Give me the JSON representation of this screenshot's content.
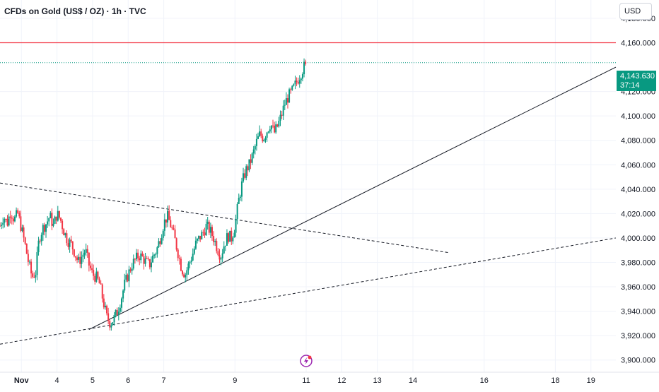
{
  "symbol_title": "CFDs on Gold (US$ / OZ) · 1h · TVC",
  "currency": "USD",
  "last_price": {
    "label": "4,143.630",
    "countdown": "37:14",
    "value": 4143.63,
    "color": "#089981"
  },
  "colors": {
    "up": "#089981",
    "down": "#f23645",
    "resistance": "#f23645",
    "trendline": "#131722",
    "grid": "#f0f3fa",
    "event_icon": "#9c27b0"
  },
  "event_icon": "lightning-icon",
  "chart_data": {
    "type": "candlestick",
    "ylim": [
      3890,
      4195
    ],
    "y_ticks": [
      {
        "value": 4180,
        "label": "4,180.000"
      },
      {
        "value": 4160,
        "label": "4,160.000"
      },
      {
        "value": 4120,
        "label": "4,120.000"
      },
      {
        "value": 4100,
        "label": "4,100.000"
      },
      {
        "value": 4080,
        "label": "4,080.000"
      },
      {
        "value": 4060,
        "label": "4,060.000"
      },
      {
        "value": 4040,
        "label": "4,040.000"
      },
      {
        "value": 4020,
        "label": "4,020.000"
      },
      {
        "value": 4000,
        "label": "4,000.000"
      },
      {
        "value": 3980,
        "label": "3,980.000"
      },
      {
        "value": 3960,
        "label": "3,960.000"
      },
      {
        "value": 3940,
        "label": "3,940.000"
      },
      {
        "value": 3920,
        "label": "3,920.000"
      },
      {
        "value": 3900,
        "label": "3,900.000"
      }
    ],
    "x_ticks": [
      {
        "day": 3,
        "label": "Nov"
      },
      {
        "day": 4,
        "label": "4"
      },
      {
        "day": 5,
        "label": "5"
      },
      {
        "day": 6,
        "label": "6"
      },
      {
        "day": 7,
        "label": "7"
      },
      {
        "day": 9,
        "label": "9"
      },
      {
        "day": 11,
        "label": "11"
      },
      {
        "day": 12,
        "label": "12"
      },
      {
        "day": 13,
        "label": "13"
      },
      {
        "day": 14,
        "label": "14"
      },
      {
        "day": 16,
        "label": "16"
      },
      {
        "day": 18,
        "label": "18"
      },
      {
        "day": 19,
        "label": "19"
      }
    ],
    "x_range": [
      2.4,
      19.7
    ],
    "series_points": [
      [
        2.4,
        4010
      ],
      [
        2.5,
        4018
      ],
      [
        2.6,
        4012
      ],
      [
        2.7,
        4022
      ],
      [
        2.8,
        4015
      ],
      [
        2.9,
        4020
      ],
      [
        3.0,
        4008
      ],
      [
        3.1,
        3995
      ],
      [
        3.2,
        3980
      ],
      [
        3.3,
        3968
      ],
      [
        3.4,
        3972
      ],
      [
        3.5,
        4000
      ],
      [
        3.6,
        4008
      ],
      [
        3.7,
        4012
      ],
      [
        3.8,
        4018
      ],
      [
        3.9,
        4010
      ],
      [
        4.0,
        4020
      ],
      [
        4.1,
        4015
      ],
      [
        4.2,
        4005
      ],
      [
        4.3,
        3998
      ],
      [
        4.4,
        3995
      ],
      [
        4.5,
        3988
      ],
      [
        4.6,
        3980
      ],
      [
        4.7,
        3985
      ],
      [
        4.8,
        3990
      ],
      [
        4.9,
        3978
      ],
      [
        5.0,
        3970
      ],
      [
        5.1,
        3968
      ],
      [
        5.2,
        3962
      ],
      [
        5.3,
        3948
      ],
      [
        5.4,
        3935
      ],
      [
        5.5,
        3930
      ],
      [
        5.6,
        3934
      ],
      [
        5.7,
        3940
      ],
      [
        5.8,
        3950
      ],
      [
        5.9,
        3962
      ],
      [
        6.0,
        3970
      ],
      [
        6.1,
        3978
      ],
      [
        6.2,
        3982
      ],
      [
        6.3,
        3986
      ],
      [
        6.4,
        3984
      ],
      [
        6.5,
        3980
      ],
      [
        6.6,
        3978
      ],
      [
        6.7,
        3985
      ],
      [
        6.8,
        3990
      ],
      [
        6.9,
        4000
      ],
      [
        7.0,
        4012
      ],
      [
        7.1,
        4018
      ],
      [
        7.2,
        4010
      ],
      [
        7.3,
        4000
      ],
      [
        7.4,
        3988
      ],
      [
        7.5,
        3975
      ],
      [
        7.6,
        3970
      ],
      [
        7.7,
        3978
      ],
      [
        7.8,
        3986
      ],
      [
        7.9,
        3995
      ],
      [
        8.0,
        4000
      ],
      [
        8.1,
        4004
      ],
      [
        8.2,
        4010
      ],
      [
        8.3,
        4006
      ],
      [
        8.4,
        4000
      ],
      [
        8.5,
        3992
      ],
      [
        8.6,
        3985
      ],
      [
        8.7,
        3995
      ],
      [
        8.8,
        4002
      ],
      [
        8.9,
        4000
      ],
      [
        9.0,
        4010
      ],
      [
        9.1,
        4030
      ],
      [
        9.2,
        4045
      ],
      [
        9.3,
        4055
      ],
      [
        9.4,
        4060
      ],
      [
        9.5,
        4068
      ],
      [
        9.6,
        4078
      ],
      [
        9.7,
        4085
      ],
      [
        9.8,
        4082
      ],
      [
        9.9,
        4088
      ],
      [
        10.0,
        4094
      ],
      [
        10.1,
        4086
      ],
      [
        10.2,
        4092
      ],
      [
        10.3,
        4100
      ],
      [
        10.4,
        4110
      ],
      [
        10.5,
        4116
      ],
      [
        10.6,
        4120
      ],
      [
        10.7,
        4126
      ],
      [
        10.8,
        4132
      ],
      [
        10.9,
        4138
      ],
      [
        11.0,
        4143.63
      ]
    ],
    "resistance_level": 4160,
    "trendlines": [
      {
        "style": "solid",
        "from": [
          4.9,
          3925
        ],
        "to": [
          19.7,
          4140
        ]
      },
      {
        "style": "dashed",
        "from": [
          2.4,
          4045
        ],
        "to": [
          15.0,
          3988
        ]
      },
      {
        "style": "dashed",
        "from": [
          2.4,
          3913
        ],
        "to": [
          19.7,
          4000
        ]
      }
    ],
    "last_price_line": 4143.63,
    "event_marker_day": 11.0
  }
}
